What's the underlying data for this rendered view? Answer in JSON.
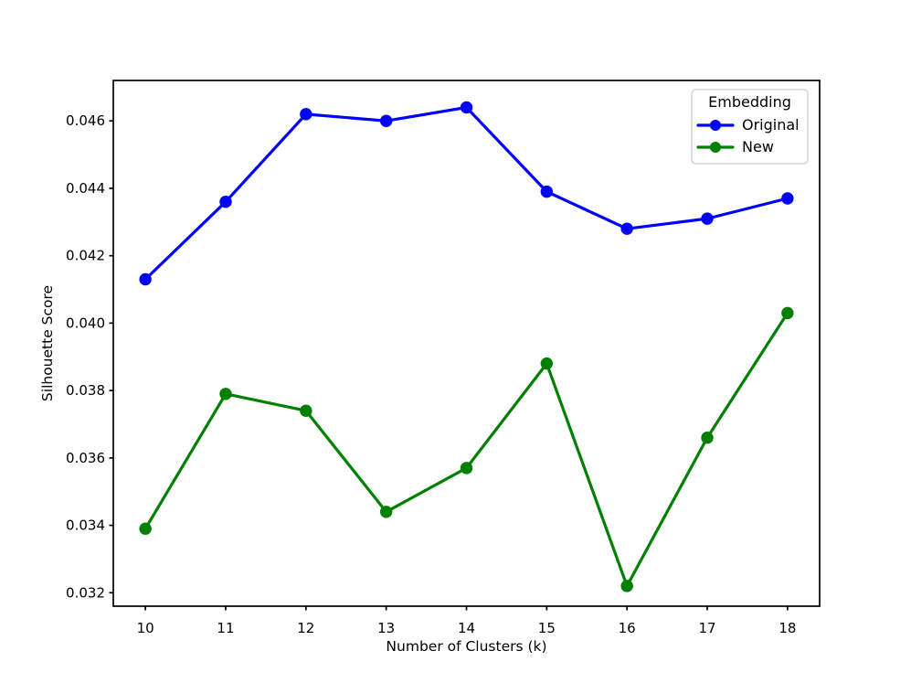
{
  "chart_data": {
    "type": "line",
    "title": "",
    "xlabel": "Number of Clusters (k)",
    "ylabel": "Silhouette Score",
    "x": [
      10,
      11,
      12,
      13,
      14,
      15,
      16,
      17,
      18
    ],
    "series": [
      {
        "name": "Original",
        "color": "#0000ff",
        "marker": "o",
        "values": [
          0.0413,
          0.0436,
          0.0462,
          0.046,
          0.0464,
          0.0439,
          0.0428,
          0.0431,
          0.0437
        ]
      },
      {
        "name": "New",
        "color": "#008000",
        "marker": "o",
        "values": [
          0.0339,
          0.0379,
          0.0374,
          0.0344,
          0.0357,
          0.0388,
          0.0322,
          0.0366,
          0.0403
        ]
      }
    ],
    "xlim": [
      9.6,
      18.4
    ],
    "ylim": [
      0.0316,
      0.0472
    ],
    "x_ticks": [
      10,
      11,
      12,
      13,
      14,
      15,
      16,
      17,
      18
    ],
    "x_tick_labels": [
      "10",
      "11",
      "12",
      "13",
      "14",
      "15",
      "16",
      "17",
      "18"
    ],
    "y_ticks": [
      0.032,
      0.034,
      0.036,
      0.038,
      0.04,
      0.042,
      0.044,
      0.046
    ],
    "y_tick_labels": [
      "0.032",
      "0.034",
      "0.036",
      "0.038",
      "0.040",
      "0.042",
      "0.044",
      "0.046"
    ],
    "grid": false,
    "legend": {
      "title": "Embedding",
      "position": "upper-right"
    },
    "colors": {
      "spine": "#000000",
      "legend_border": "#cccccc",
      "background": "#ffffff"
    }
  }
}
